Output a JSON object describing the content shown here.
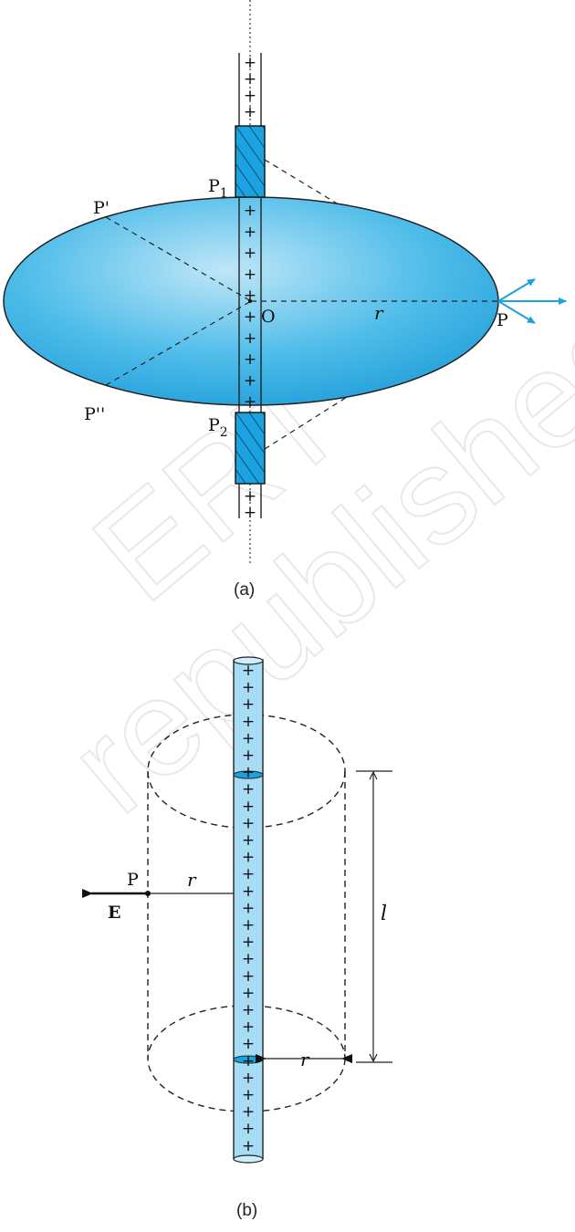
{
  "figure_a": {
    "labels": {
      "p_prime": "P'",
      "p_double_prime": "P''",
      "p1": "P",
      "p1_sub": "1",
      "p2": "P",
      "p2_sub": "2",
      "origin": "O",
      "radius": "r",
      "point": "P"
    },
    "plus_sign": "+",
    "caption": "(a)"
  },
  "figure_b": {
    "labels": {
      "point": "P",
      "radius_top": "r",
      "radius_bottom": "r",
      "length": "l",
      "field": "E"
    },
    "plus_sign": "+",
    "caption": "(b)"
  },
  "watermark": {
    "line1": "ERT",
    "line2": "republished"
  },
  "colors": {
    "surface_blue": "#1aa3e0",
    "wire_blue": "#a7dcf5",
    "arrow_blue": "#1ba1df",
    "ink": "#111111"
  }
}
